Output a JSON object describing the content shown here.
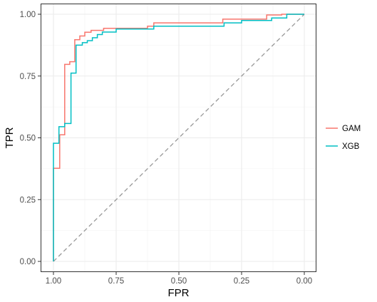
{
  "chart_data": {
    "type": "line",
    "title": "",
    "xlabel": "FPR",
    "ylabel": "TPR",
    "xlim": [
      1.0,
      0.0
    ],
    "ylim": [
      0.0,
      1.0
    ],
    "x_reversed": true,
    "x_ticks": [
      "1.00",
      "0.75",
      "0.50",
      "0.25",
      "0.00"
    ],
    "x_tick_values": [
      1.0,
      0.75,
      0.5,
      0.25,
      0.0
    ],
    "y_ticks": [
      "0.00",
      "0.25",
      "0.50",
      "0.75",
      "1.00"
    ],
    "y_tick_values": [
      0.0,
      0.25,
      0.5,
      0.75,
      1.0
    ],
    "grid": true,
    "legend_position": "right",
    "reference_line": {
      "style": "dashed",
      "color": "#999999",
      "from": [
        1.0,
        0.0
      ],
      "to": [
        0.0,
        1.0
      ]
    },
    "series": [
      {
        "name": "GAM",
        "color": "#F8766D",
        "points": [
          [
            1.0,
            0.0
          ],
          [
            1.0,
            0.377
          ],
          [
            0.975,
            0.377
          ],
          [
            0.975,
            0.512
          ],
          [
            0.955,
            0.512
          ],
          [
            0.955,
            0.797
          ],
          [
            0.935,
            0.797
          ],
          [
            0.935,
            0.808
          ],
          [
            0.915,
            0.808
          ],
          [
            0.915,
            0.897
          ],
          [
            0.895,
            0.897
          ],
          [
            0.895,
            0.912
          ],
          [
            0.875,
            0.912
          ],
          [
            0.875,
            0.927
          ],
          [
            0.85,
            0.927
          ],
          [
            0.85,
            0.935
          ],
          [
            0.8,
            0.935
          ],
          [
            0.8,
            0.943
          ],
          [
            0.625,
            0.943
          ],
          [
            0.625,
            0.952
          ],
          [
            0.6,
            0.952
          ],
          [
            0.6,
            0.965
          ],
          [
            0.325,
            0.965
          ],
          [
            0.325,
            0.98
          ],
          [
            0.15,
            0.98
          ],
          [
            0.15,
            0.997
          ],
          [
            0.09,
            0.997
          ],
          [
            0.09,
            1.0
          ],
          [
            0.0,
            1.0
          ]
        ]
      },
      {
        "name": "XGB",
        "color": "#00BFC4",
        "points": [
          [
            1.0,
            0.0
          ],
          [
            1.0,
            0.478
          ],
          [
            0.978,
            0.478
          ],
          [
            0.978,
            0.545
          ],
          [
            0.955,
            0.545
          ],
          [
            0.955,
            0.558
          ],
          [
            0.93,
            0.558
          ],
          [
            0.93,
            0.762
          ],
          [
            0.91,
            0.762
          ],
          [
            0.91,
            0.875
          ],
          [
            0.885,
            0.875
          ],
          [
            0.885,
            0.885
          ],
          [
            0.865,
            0.885
          ],
          [
            0.865,
            0.893
          ],
          [
            0.845,
            0.893
          ],
          [
            0.845,
            0.905
          ],
          [
            0.825,
            0.905
          ],
          [
            0.825,
            0.918
          ],
          [
            0.805,
            0.918
          ],
          [
            0.805,
            0.928
          ],
          [
            0.75,
            0.928
          ],
          [
            0.75,
            0.94
          ],
          [
            0.6,
            0.94
          ],
          [
            0.6,
            0.952
          ],
          [
            0.32,
            0.952
          ],
          [
            0.32,
            0.965
          ],
          [
            0.25,
            0.965
          ],
          [
            0.25,
            0.975
          ],
          [
            0.13,
            0.975
          ],
          [
            0.13,
            0.985
          ],
          [
            0.07,
            0.985
          ],
          [
            0.07,
            1.0
          ],
          [
            0.0,
            1.0
          ]
        ]
      }
    ]
  }
}
